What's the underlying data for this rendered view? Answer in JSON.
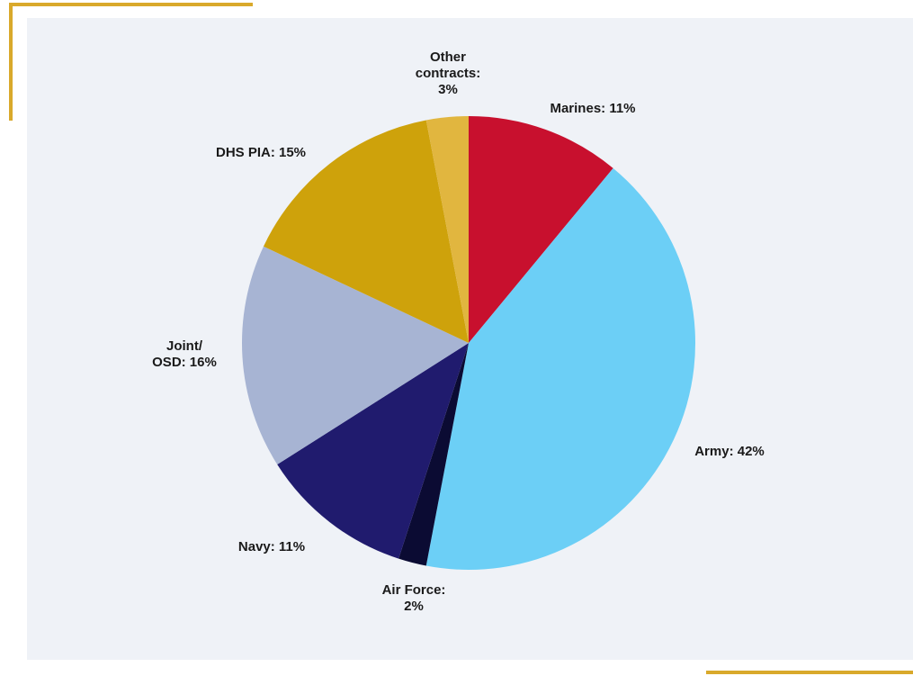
{
  "chart_data": {
    "type": "pie",
    "slices": [
      {
        "key": "marines",
        "lines": [
          "Marines: 11%"
        ],
        "value": 11,
        "color": "#c8102e"
      },
      {
        "key": "army",
        "lines": [
          "Army: 42%"
        ],
        "value": 42,
        "color": "#6ccff6"
      },
      {
        "key": "airforce",
        "lines": [
          "Air Force:",
          "2%"
        ],
        "value": 2,
        "color": "#0b0b33"
      },
      {
        "key": "navy",
        "lines": [
          "Navy: 11%"
        ],
        "value": 11,
        "color": "#201b6e"
      },
      {
        "key": "joint",
        "lines": [
          "Joint/",
          "OSD: 16%"
        ],
        "value": 16,
        "color": "#a7b4d3"
      },
      {
        "key": "dhs",
        "lines": [
          "DHS PIA: 15%"
        ],
        "value": 15,
        "color": "#cea20b"
      },
      {
        "key": "other",
        "lines": [
          "Other",
          "contracts:",
          "3%"
        ],
        "value": 3,
        "color": "#e1b63f"
      }
    ]
  }
}
